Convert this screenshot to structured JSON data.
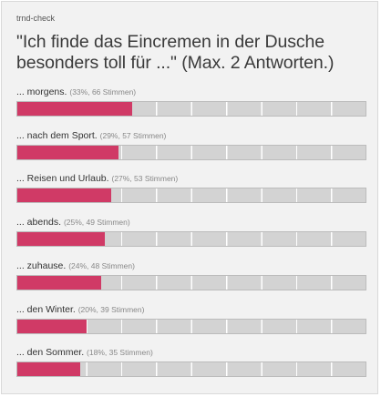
{
  "source": "trnd-check",
  "question": "\"Ich finde das Eincremen in der Dusche besonders toll für ...\" (Max. 2 Antworten.)",
  "colors": {
    "bar_fill": "#d03a66",
    "bar_track": "#d3d3d3"
  },
  "options": [
    {
      "label": "... morgens.",
      "meta": "(33%, 66 Stimmen)",
      "percent": 33
    },
    {
      "label": "... nach dem Sport.",
      "meta": "(29%, 57 Stimmen)",
      "percent": 29
    },
    {
      "label": "... Reisen und Urlaub.",
      "meta": "(27%, 53 Stimmen)",
      "percent": 27
    },
    {
      "label": "... abends.",
      "meta": "(25%, 49 Stimmen)",
      "percent": 25
    },
    {
      "label": "... zuhause.",
      "meta": "(24%, 48 Stimmen)",
      "percent": 24
    },
    {
      "label": "... den Winter.",
      "meta": "(20%, 39 Stimmen)",
      "percent": 20
    },
    {
      "label": "... den Sommer.",
      "meta": "(18%, 35 Stimmen)",
      "percent": 18
    }
  ]
}
